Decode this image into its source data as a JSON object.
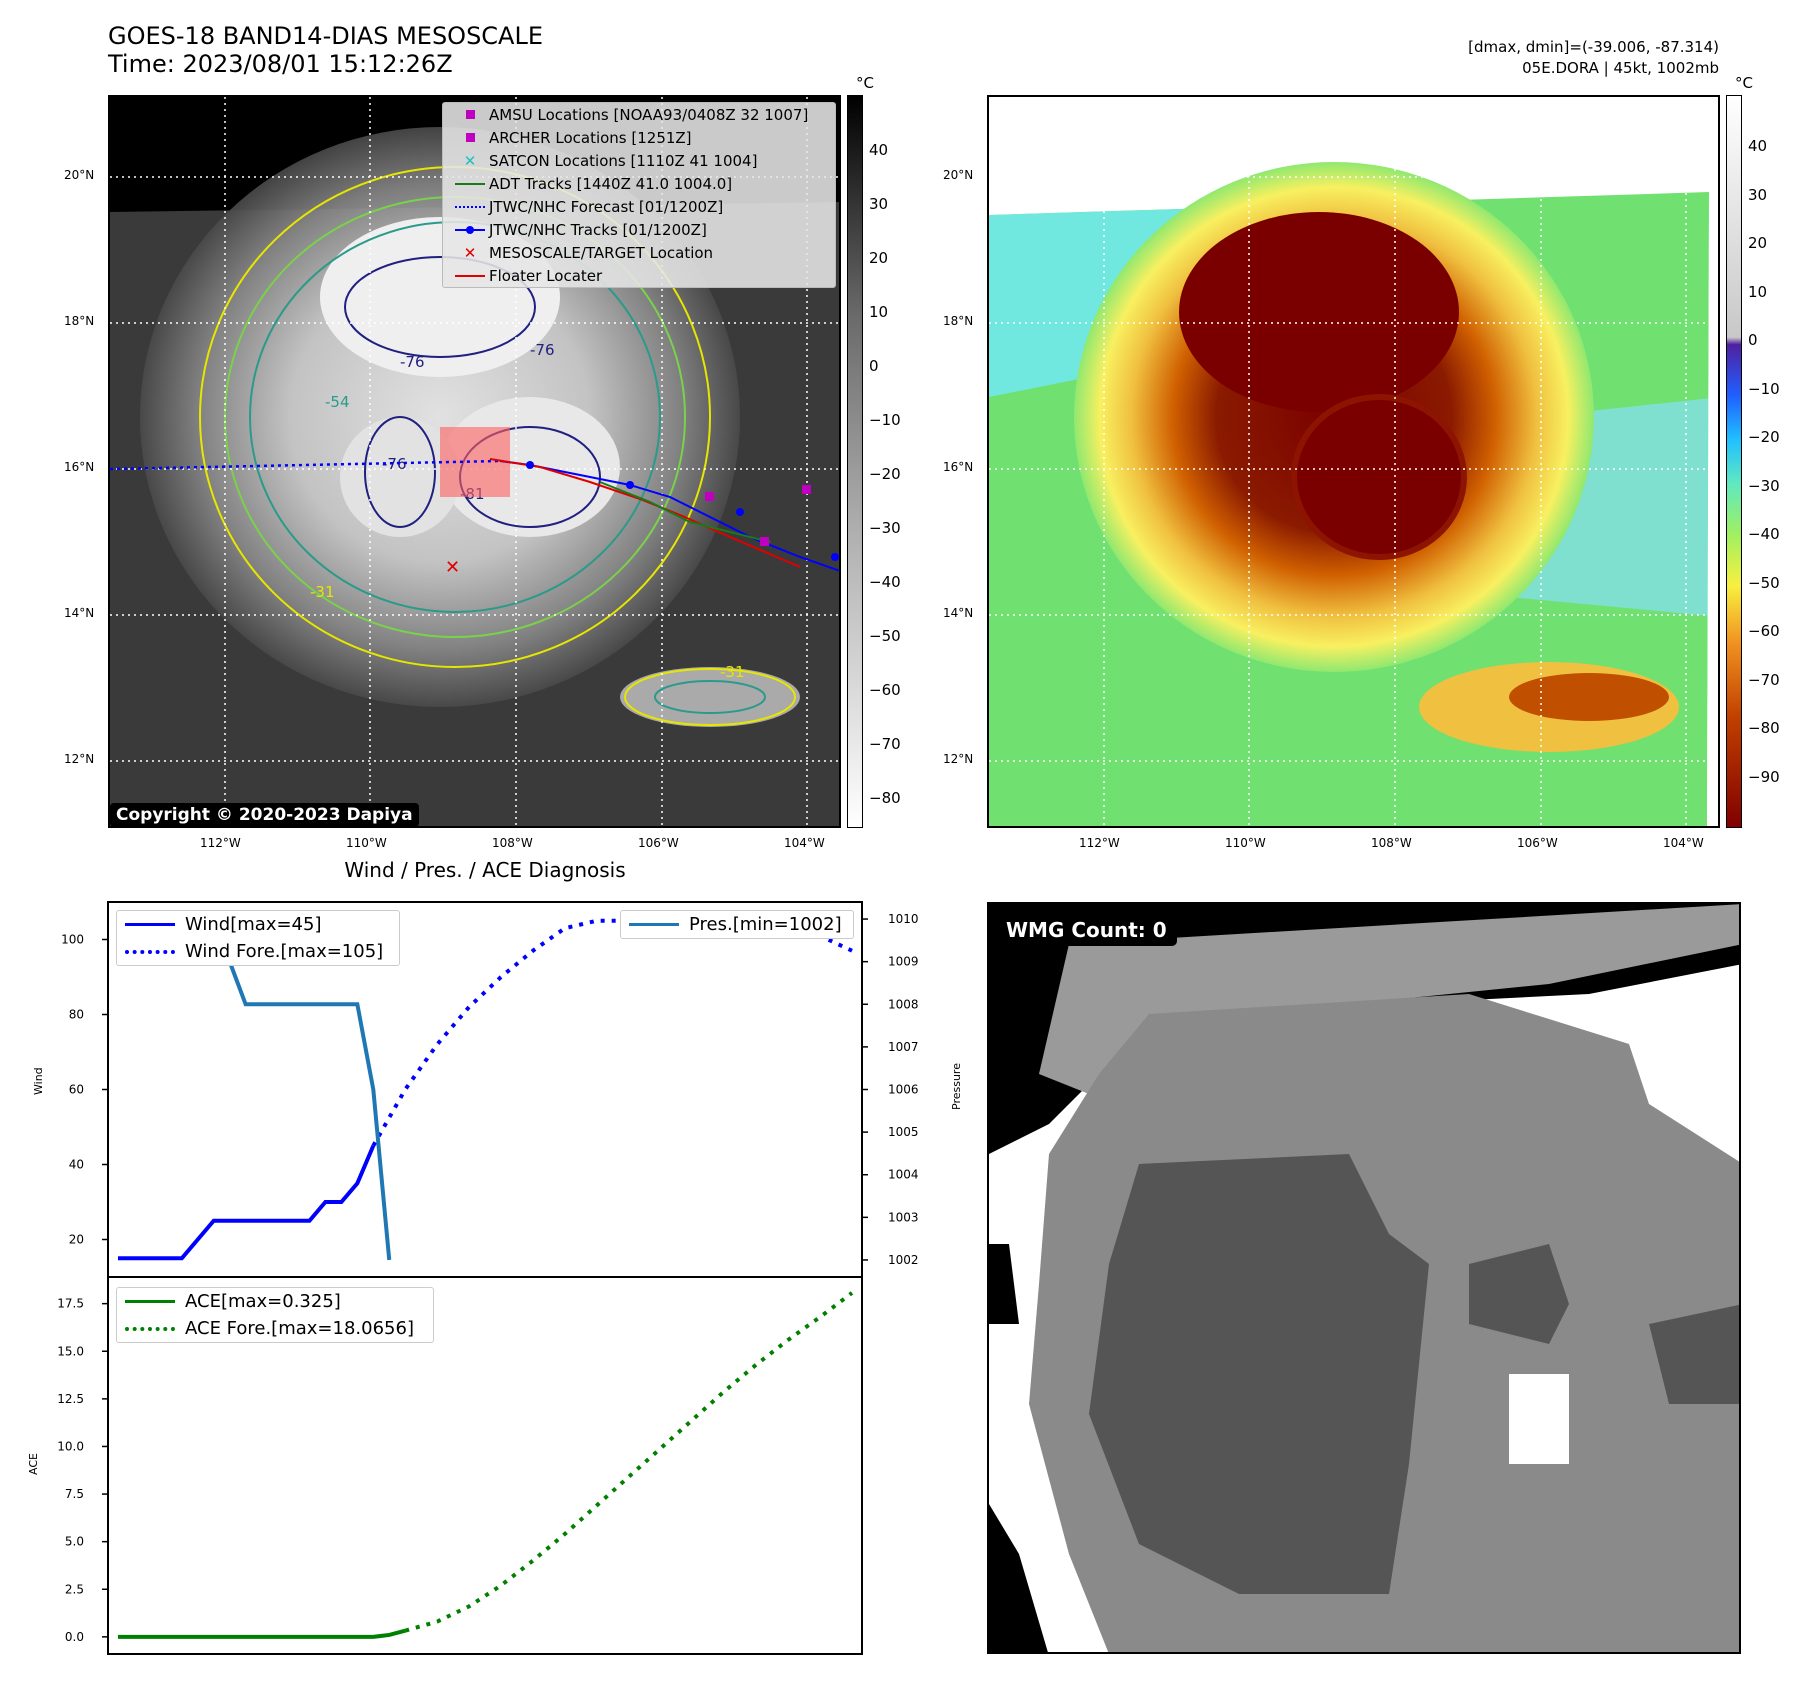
{
  "header": {
    "title": "GOES-18 BAND14-DIAS MESOSCALE",
    "time": "Time: 2023/08/01 15:12:26Z",
    "dmaxmin": "[dmax, dmin]=(-39.006, -87.314)",
    "storm": "05E.DORA | 45kt, 1002mb"
  },
  "map": {
    "lat_labels": [
      "20°N",
      "18°N",
      "16°N",
      "14°N",
      "12°N"
    ],
    "lon_labels": [
      "112°W",
      "110°W",
      "108°W",
      "106°W",
      "104°W"
    ],
    "contour_labels": [
      "-76",
      "-76",
      "-81",
      "-54",
      "-31",
      "-31",
      "-76"
    ],
    "copyright": "Copyright © 2020-2023 Dapiya",
    "legend": [
      {
        "label": "AMSU Locations [NOAA93/0408Z 32 1007]",
        "symbol": "square",
        "color": "#c000c0"
      },
      {
        "label": "ARCHER Locations [1251Z]",
        "symbol": "square",
        "color": "#c000c0"
      },
      {
        "label": "SATCON Locations [1110Z 41 1004]",
        "symbol": "x",
        "color": "#20c0c0"
      },
      {
        "label": "ADT Tracks [1440Z 41.0 1004.0]",
        "symbol": "line",
        "color": "#1a7a1a"
      },
      {
        "label": "JTWC/NHC Forecast [01/1200Z]",
        "symbol": "dotted",
        "color": "#0000ff"
      },
      {
        "label": "JTWC/NHC Tracks [01/1200Z]",
        "symbol": "dotline",
        "color": "#0000ff"
      },
      {
        "label": "MESOSCALE/TARGET Location",
        "symbol": "x",
        "color": "#e00000"
      },
      {
        "label": "Floater Locater",
        "symbol": "line",
        "color": "#e00000"
      }
    ]
  },
  "colorbar_gray": {
    "unit": "°C",
    "ticks": [
      "40",
      "30",
      "20",
      "10",
      "0",
      "−10",
      "−20",
      "−30",
      "−40",
      "−50",
      "−60",
      "−70",
      "−80"
    ]
  },
  "colorbar_color": {
    "unit": "°C",
    "ticks": [
      "40",
      "30",
      "20",
      "10",
      "0",
      "−10",
      "−20",
      "−30",
      "−40",
      "−50",
      "−60",
      "−70",
      "−80",
      "−90"
    ]
  },
  "diag": {
    "title": "Wind / Pres. / ACE Diagnosis",
    "wind_ylabel": "Wind",
    "pres_ylabel": "Pressure",
    "ace_ylabel": "ACE",
    "wind_ticks": [
      "100",
      "80",
      "60",
      "40",
      "20"
    ],
    "pres_ticks": [
      "1010",
      "1009",
      "1008",
      "1007",
      "1006",
      "1005",
      "1004",
      "1003",
      "1002"
    ],
    "ace_ticks": [
      "17.5",
      "15.0",
      "12.5",
      "10.0",
      "7.5",
      "5.0",
      "2.5",
      "0.0"
    ],
    "legend_wind": "Wind[max=45]",
    "legend_wind_fore": "Wind Fore.[max=105]",
    "legend_pres": "Pres.[min=1002]",
    "legend_ace": "ACE[max=0.325]",
    "legend_ace_fore": "ACE Fore.[max=18.0656]"
  },
  "wmg": {
    "label": "WMG Count: 0"
  },
  "chart_data": [
    {
      "type": "line",
      "title": "Wind / Pres. / ACE Diagnosis",
      "ylabel": "Wind",
      "ylim": [
        10,
        110
      ],
      "series": [
        {
          "name": "Wind[max=45]",
          "color": "#0000ff",
          "style": "solid",
          "x": [
            0,
            1,
            2,
            3,
            4,
            5,
            6,
            7,
            8,
            9,
            10,
            11,
            12,
            13,
            14,
            15,
            16
          ],
          "values": [
            15,
            15,
            15,
            15,
            15,
            20,
            25,
            25,
            25,
            25,
            25,
            25,
            25,
            30,
            30,
            35,
            45
          ]
        },
        {
          "name": "Wind Fore.[max=105]",
          "color": "#0000ff",
          "style": "dotted",
          "x": [
            16,
            18,
            20,
            22,
            24,
            26,
            28,
            30,
            32,
            34,
            36,
            38,
            40,
            42,
            44,
            46
          ],
          "values": [
            45,
            60,
            72,
            82,
            90,
            97,
            103,
            105,
            105,
            105,
            105,
            105,
            104,
            101,
            101,
            97
          ]
        },
        {
          "name": "Pres.[min=1002]",
          "color": "#1f77b4",
          "style": "solid",
          "axis": "right",
          "ylim": [
            1001.6,
            1010.4
          ],
          "x": [
            0,
            1,
            2,
            3,
            4,
            5,
            6,
            7,
            8,
            9,
            10,
            11,
            12,
            13,
            14,
            15,
            16,
            17
          ],
          "values": [
            1010,
            1010,
            1010,
            1010,
            1010,
            1009,
            1009,
            1009,
            1008,
            1008,
            1008,
            1008,
            1008,
            1008,
            1008,
            1008,
            1006,
            1002
          ]
        }
      ]
    },
    {
      "type": "line",
      "ylabel": "ACE",
      "ylim": [
        -0.9,
        18.9
      ],
      "series": [
        {
          "name": "ACE[max=0.325]",
          "color": "#008000",
          "style": "solid",
          "x": [
            0,
            16,
            17,
            18
          ],
          "values": [
            0,
            0,
            0.1,
            0.325
          ]
        },
        {
          "name": "ACE Fore.[max=18.0656]",
          "color": "#008000",
          "style": "dotted",
          "x": [
            18,
            20,
            22,
            24,
            26,
            28,
            30,
            32,
            34,
            36,
            38,
            40,
            42,
            44,
            46
          ],
          "values": [
            0.325,
            0.8,
            1.6,
            2.7,
            4.0,
            5.4,
            6.9,
            8.4,
            9.9,
            11.4,
            12.9,
            14.3,
            15.6,
            16.8,
            18.0656
          ]
        }
      ]
    }
  ]
}
